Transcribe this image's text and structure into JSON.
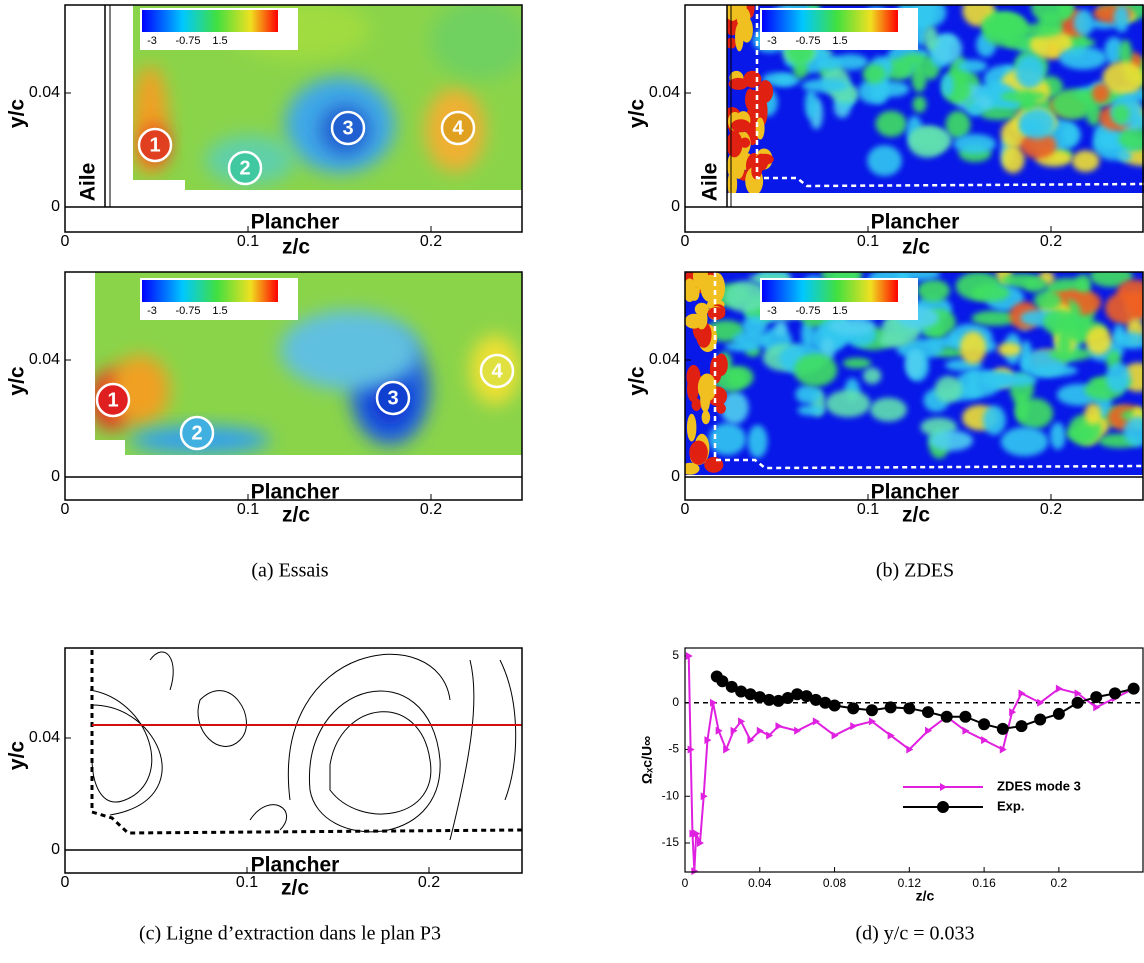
{
  "panel_a": {
    "caption": "(a) Essais",
    "maps": [
      {
        "wall": "Aile",
        "floor": "Plancher",
        "xlabel": "z/c",
        "ylabel": "y/c",
        "xticks": [
          0,
          0.1,
          0.2
        ],
        "yticks": [
          0,
          0.04
        ],
        "colorbar_ticks": [
          -3,
          -0.75,
          1.5
        ],
        "markers": [
          1,
          2,
          3,
          4
        ]
      },
      {
        "floor": "Plancher",
        "xlabel": "z/c",
        "ylabel": "y/c",
        "xticks": [
          0,
          0.1,
          0.2
        ],
        "yticks": [
          0,
          0.04
        ],
        "colorbar_ticks": [
          -3,
          -0.75,
          1.5
        ],
        "markers": [
          1,
          2,
          3,
          4
        ]
      }
    ]
  },
  "panel_b": {
    "caption": "(b) ZDES",
    "maps": [
      {
        "wall": "Aile",
        "floor": "Plancher",
        "xlabel": "z/c",
        "ylabel": "y/c",
        "xticks": [
          0,
          0.1,
          0.2
        ],
        "yticks": [
          0,
          0.04
        ],
        "colorbar_ticks": [
          -3,
          -0.75,
          1.5
        ]
      },
      {
        "floor": "Plancher",
        "xlabel": "z/c",
        "ylabel": "y/c",
        "xticks": [
          0,
          0.1,
          0.2
        ],
        "yticks": [
          0,
          0.04
        ],
        "colorbar_ticks": [
          -3,
          -0.75,
          1.5
        ]
      }
    ]
  },
  "panel_c": {
    "caption": "(c) Ligne d’extraction dans le plan P3",
    "floor": "Plancher",
    "xlabel": "z/c",
    "ylabel": "y/c",
    "xticks": [
      0,
      0.1,
      0.2
    ],
    "yticks": [
      0,
      0.04
    ]
  },
  "panel_d": {
    "caption": "(d) y/c = 0.033"
  },
  "chart_data": {
    "type": "line",
    "xlabel": "z/c",
    "ylabel": "Ωₓc/U∞",
    "xlim": [
      0,
      0.245
    ],
    "ylim": [
      -18.1,
      5.85
    ],
    "xticks": [
      0,
      0.04,
      0.08,
      0.12,
      0.16,
      0.2
    ],
    "yticks": [
      -15,
      -10,
      -5,
      0,
      5
    ],
    "series": [
      {
        "name": "ZDES mode 3",
        "color": "#e020e0",
        "marker": "triangle",
        "x": [
          0.002,
          0.003,
          0.004,
          0.005,
          0.006,
          0.008,
          0.01,
          0.012,
          0.015,
          0.018,
          0.022,
          0.026,
          0.03,
          0.035,
          0.04,
          0.045,
          0.05,
          0.06,
          0.07,
          0.08,
          0.09,
          0.1,
          0.11,
          0.12,
          0.13,
          0.14,
          0.15,
          0.16,
          0.17,
          0.175,
          0.18,
          0.19,
          0.2,
          0.21,
          0.22,
          0.23,
          0.24
        ],
        "values": [
          5,
          -5,
          -14,
          -18,
          -14,
          -15,
          -10,
          -4,
          0,
          -3,
          -5,
          -3,
          -2,
          -4,
          -3,
          -3.5,
          -2.5,
          -3,
          -2,
          -3.5,
          -2.5,
          -2,
          -3.5,
          -5,
          -3,
          -1.5,
          -3,
          -4,
          -5,
          -1,
          1,
          0,
          1.5,
          1,
          -0.5,
          0.5,
          1.5
        ]
      },
      {
        "name": "Exp.",
        "color": "#000000",
        "marker": "circle",
        "x": [
          0.017,
          0.02,
          0.025,
          0.03,
          0.035,
          0.04,
          0.045,
          0.05,
          0.055,
          0.06,
          0.065,
          0.07,
          0.075,
          0.08,
          0.09,
          0.1,
          0.11,
          0.12,
          0.13,
          0.14,
          0.15,
          0.16,
          0.17,
          0.18,
          0.19,
          0.2,
          0.21,
          0.22,
          0.23,
          0.24
        ],
        "values": [
          2.8,
          2.3,
          1.7,
          1.2,
          0.9,
          0.6,
          0.3,
          0.2,
          0.5,
          0.9,
          0.7,
          0.3,
          0,
          -0.3,
          -0.6,
          -0.8,
          -0.5,
          -0.6,
          -1,
          -1.5,
          -1.5,
          -2.3,
          -2.8,
          -2.5,
          -1.8,
          -1.2,
          0,
          0.6,
          1,
          1.5
        ]
      }
    ]
  }
}
